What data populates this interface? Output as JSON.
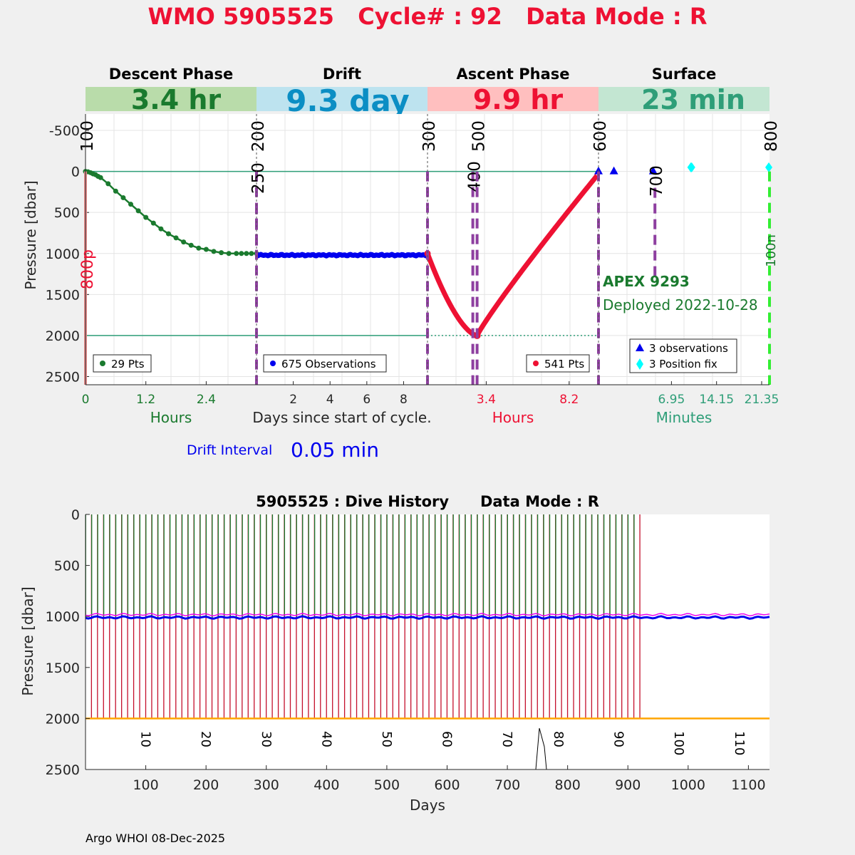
{
  "title": "WMO 5905525   Cycle# : 92   Data Mode : R",
  "colors": {
    "title": "#ee1133",
    "descent": "#1a7a2e",
    "drift": "#0000ee",
    "ascent": "#ee1133",
    "surface": "#2e9e78",
    "purple": "#8e3fa0",
    "descent_band": "#b9dcaa",
    "drift_band": "#bde3ef",
    "ascent_band": "#ffbfbf",
    "surface_band": "#c3e6d2",
    "drift_text": "#0b8ec4",
    "cyan": "#00ffff",
    "bright_green": "#33ee33",
    "orange": "#ffa500",
    "magenta": "#ee00ee"
  },
  "phases": [
    {
      "name": "Descent Phase",
      "duration": "3.4 hr"
    },
    {
      "name": "Drift",
      "duration": "9.3 day"
    },
    {
      "name": "Ascent Phase",
      "duration": "9.9 hr"
    },
    {
      "name": "Surface",
      "duration": "23 min"
    }
  ],
  "top_chart": {
    "ylabel": "Pressure [dbar]",
    "ylim": [
      2600,
      -700
    ],
    "yticks": [
      -500,
      0,
      500,
      1000,
      1500,
      2000,
      2500
    ],
    "descent_xticks": [
      "0",
      "1.2",
      "2.4"
    ],
    "descent_xlabel": "Hours",
    "drift_xticks": [
      "2",
      "4",
      "6",
      "8"
    ],
    "drift_xlabel": "Days since start of cycle.",
    "ascent_xticks": [
      "3.4",
      "8.2"
    ],
    "ascent_xlabel": "Hours",
    "surface_xticks": [
      "6.95",
      "14.15",
      "21.35"
    ],
    "surface_xlabel": "Minutes",
    "descent_legend": "29 Pts",
    "drift_legend": "675 Observations",
    "ascent_legend": "541 Pts",
    "surface_legend": [
      "3 observations",
      "3 Position fix"
    ],
    "float_model": "APEX 9293",
    "deployed": "Deployed 2022-10-28",
    "markers": [
      {
        "label": "100",
        "panel": 0,
        "pos": 0,
        "depth_to": 2600,
        "color": "#e88c8c",
        "style": "solid"
      },
      {
        "label": "200",
        "panel": 1,
        "pos": 0,
        "depth_to": 2600,
        "color": "#8e3fa0",
        "style": "dash"
      },
      {
        "label": "250",
        "panel": 1,
        "pos": 0,
        "depth_to": 1000,
        "color": "#8e3fa0",
        "style": "dash"
      },
      {
        "label": "300",
        "panel": 2,
        "pos": 0,
        "depth_to": 2600,
        "color": "#8e3fa0",
        "style": "dash"
      },
      {
        "label": "400",
        "panel": 2,
        "pos": 0.265,
        "depth_to": 2600,
        "color": "#8e3fa0",
        "style": "dash"
      },
      {
        "label": "500",
        "panel": 2,
        "pos": 0.29,
        "depth_to": 2600,
        "color": "#8e3fa0",
        "style": "dash"
      },
      {
        "label": "600",
        "panel": 3,
        "pos": 0,
        "depth_to": 2600,
        "color": "#8e3fa0",
        "style": "dash"
      },
      {
        "label": "700",
        "panel": 3,
        "pos": 0.33,
        "depth_to": 1300,
        "color": "#8e3fa0",
        "style": "dash"
      },
      {
        "label": "800",
        "panel": 3,
        "pos": 1,
        "depth_to": 2600,
        "color": "#33ee33",
        "style": "dash"
      }
    ],
    "side_label_red": "800p",
    "side_label_green": "100n",
    "descent_profile": {
      "x_hours": [
        0,
        0.05,
        0.1,
        0.2,
        0.3,
        0.45,
        0.6,
        0.75,
        0.9,
        1.05,
        1.2,
        1.35,
        1.5,
        1.65,
        1.8,
        1.95,
        2.1,
        2.25,
        2.4,
        2.55,
        2.7,
        2.85,
        3.0,
        3.1,
        3.2,
        3.3,
        3.4,
        0.15,
        0.25
      ],
      "depth": [
        0,
        5,
        15,
        40,
        75,
        150,
        240,
        320,
        400,
        480,
        560,
        630,
        700,
        760,
        810,
        860,
        900,
        935,
        950,
        975,
        990,
        1000,
        1000,
        1000,
        1000,
        1000,
        1000,
        30,
        60
      ]
    },
    "drift_level": 1020,
    "ascent_profile": {
      "start": 1000,
      "bottom": 2000,
      "bottom_pos": 0.29,
      "end": 50
    },
    "surface_points": [
      {
        "type": "obs",
        "pos": 0,
        "depth": 0
      },
      {
        "type": "obs",
        "pos": 0.09,
        "depth": 0
      },
      {
        "type": "obs",
        "pos": 0.32,
        "depth": 0
      },
      {
        "type": "fix",
        "pos": 0.54,
        "depth": -50
      },
      {
        "type": "fix",
        "pos": 0.545,
        "depth": -50
      },
      {
        "type": "fix",
        "pos": 1,
        "depth": -50
      }
    ]
  },
  "drift_interval_label": "Drift Interval",
  "drift_interval_value": "0.05 min",
  "history": {
    "title": "5905525 : Dive History      Data Mode : R",
    "ylabel": "Pressure [dbar]",
    "xlabel": "Days",
    "xlim": [
      0,
      1135
    ],
    "ylim": [
      0,
      2500
    ],
    "xticks": [
      100,
      200,
      300,
      400,
      500,
      600,
      700,
      800,
      900,
      1000,
      1100
    ],
    "yticks": [
      0,
      500,
      1000,
      1500,
      2000,
      2500
    ],
    "cycle_labels": [
      {
        "cycle": "10",
        "day": 93
      },
      {
        "cycle": "20",
        "day": 193
      },
      {
        "cycle": "30",
        "day": 293
      },
      {
        "cycle": "40",
        "day": 393
      },
      {
        "cycle": "50",
        "day": 493
      },
      {
        "cycle": "60",
        "day": 593
      },
      {
        "cycle": "70",
        "day": 693
      },
      {
        "cycle": "80",
        "day": 778
      },
      {
        "cycle": "90",
        "day": 878
      },
      {
        "cycle": "100",
        "day": 978
      },
      {
        "cycle": "110",
        "day": 1078
      }
    ],
    "num_cycles": 92,
    "cycle_interval_days": 10,
    "park_depth": 1010,
    "profile_depth": 2000
  },
  "footer": "Argo WHOI 08-Dec-2025"
}
